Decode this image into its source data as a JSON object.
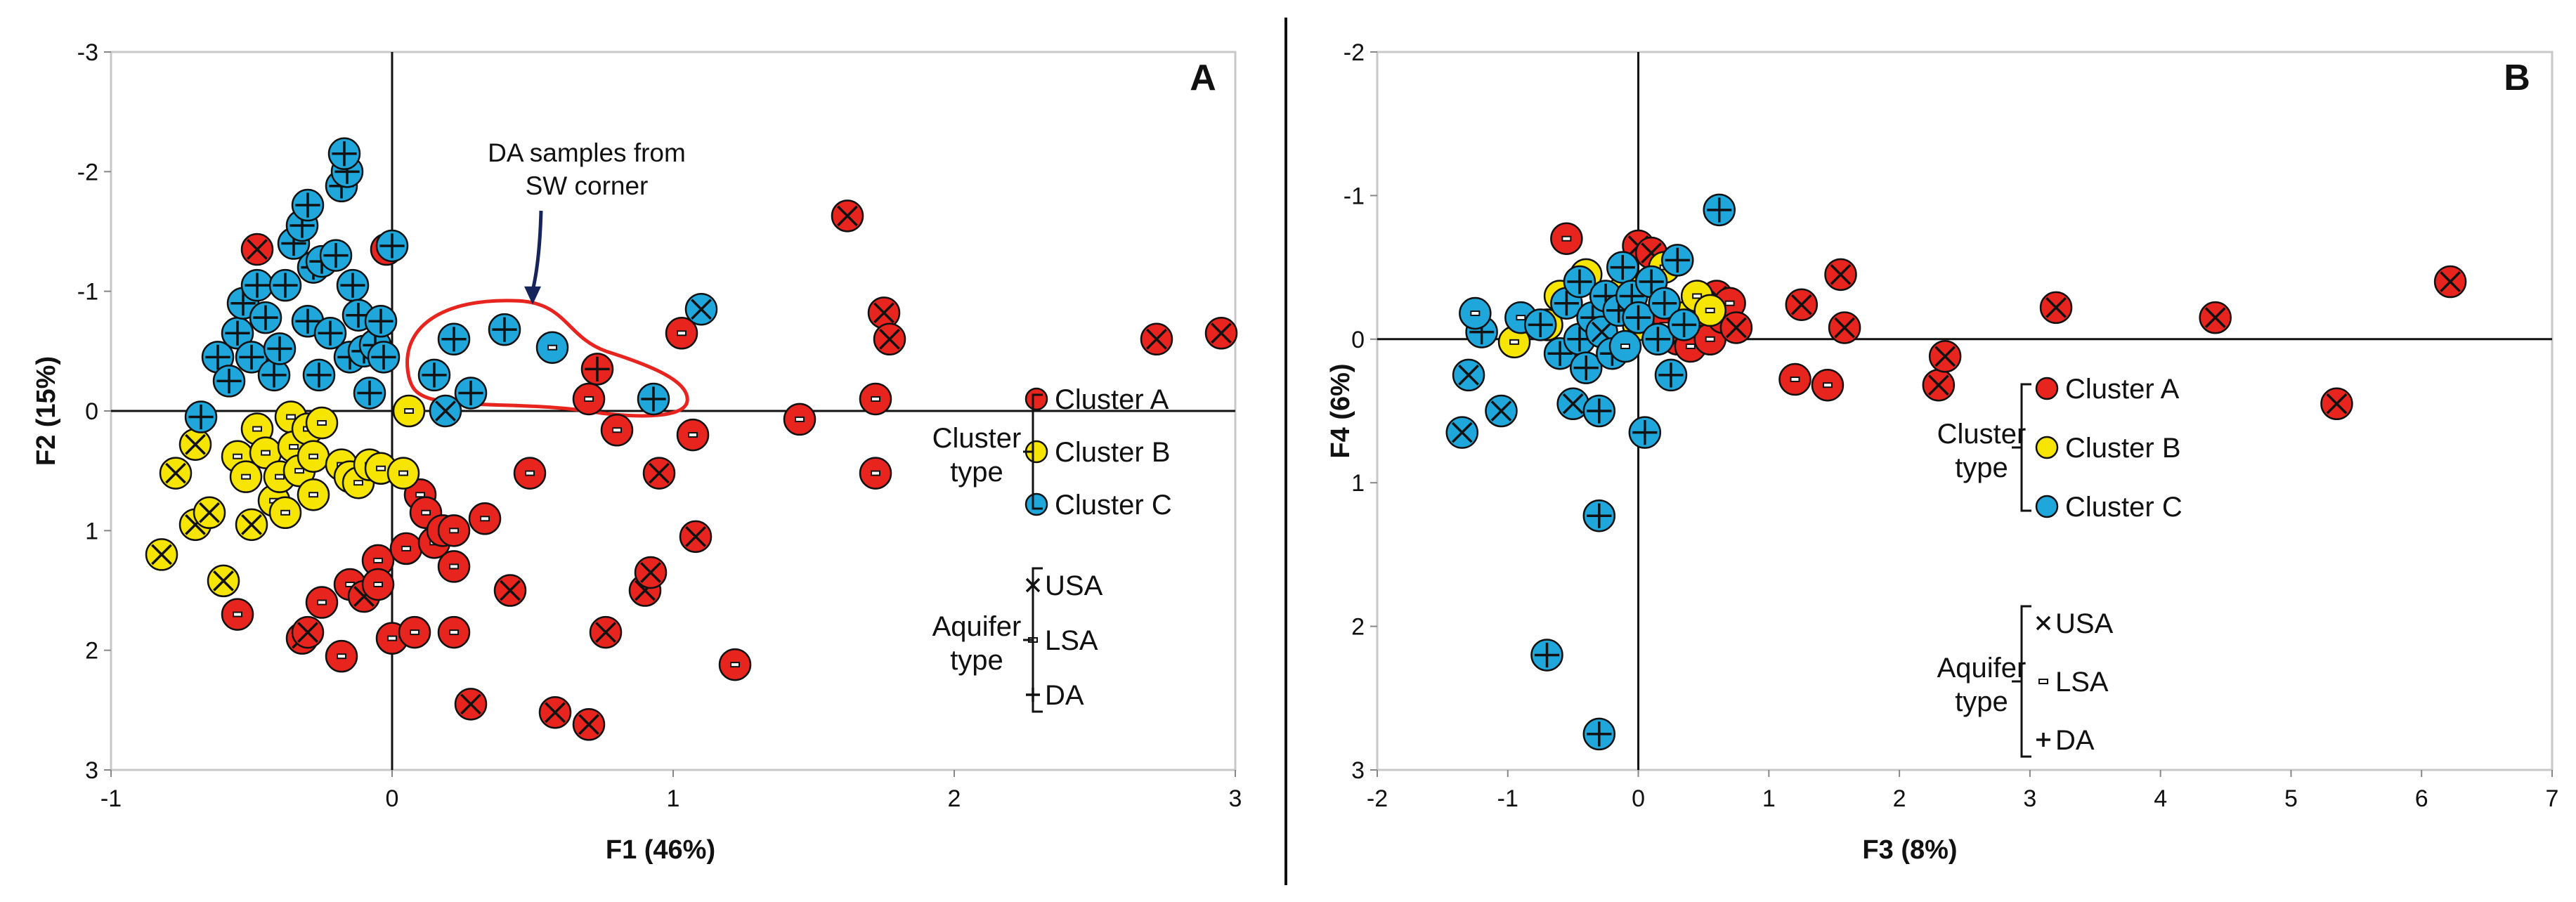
{
  "colors": {
    "cluster_a": "#e8241f",
    "cluster_b": "#f5e500",
    "cluster_c": "#1fa6db",
    "annotation_outline": "#e8241f",
    "arrow": "#16245c",
    "axis": "#111111"
  },
  "chart_data": [
    {
      "type": "scatter",
      "panel_label": "A",
      "title": "",
      "xlabel": "F1 (46%)",
      "ylabel": "F2 (15%)",
      "xlim": [
        -1,
        3
      ],
      "ylim": [
        3,
        -3
      ],
      "y_inverted": true,
      "xticks": [
        -1,
        0,
        1,
        2,
        3
      ],
      "xtick_labels": [
        "-1",
        "0",
        "1",
        "2",
        "3"
      ],
      "yticks": [
        -3,
        -2,
        -1,
        0,
        1,
        2,
        3
      ],
      "ytick_labels": [
        "-3",
        "-2",
        "-1",
        "0",
        "1",
        "2",
        "3"
      ],
      "grid": false,
      "annotation": {
        "text_lines": [
          "DA samples from",
          "SW corner"
        ],
        "x": 0.7,
        "y": -1.9,
        "arrow_to": [
          0.5,
          -0.9
        ]
      },
      "legend": {
        "placement": "right",
        "cluster_title": [
          "Cluster",
          "type"
        ],
        "cluster_entries": [
          "Cluster A",
          "Cluster B",
          "Cluster C"
        ],
        "aquifer_title": [
          "Aquifer",
          "type"
        ],
        "aquifer_entries": [
          {
            "symbol": "×",
            "label": "USA"
          },
          {
            "symbol": "-",
            "label": "LSA"
          },
          {
            "symbol": "+",
            "label": "DA"
          }
        ]
      },
      "series": [
        {
          "name": "Cluster A",
          "color_key": "cluster_a",
          "points": [
            [
              -0.48,
              -1.35,
              "x"
            ],
            [
              -0.02,
              -1.35,
              "-"
            ],
            [
              -0.55,
              1.7,
              "-"
            ],
            [
              -0.32,
              1.9,
              "x"
            ],
            [
              -0.3,
              1.85,
              "x"
            ],
            [
              -0.25,
              1.6,
              "-"
            ],
            [
              -0.18,
              2.05,
              "-"
            ],
            [
              -0.15,
              1.45,
              "-"
            ],
            [
              -0.1,
              1.55,
              "x"
            ],
            [
              -0.05,
              1.25,
              "-"
            ],
            [
              -0.05,
              1.45,
              "-"
            ],
            [
              0,
              1.9,
              "-"
            ],
            [
              0.05,
              1.15,
              "-"
            ],
            [
              0.08,
              1.85,
              "-"
            ],
            [
              0.1,
              0.7,
              "-"
            ],
            [
              0.12,
              0.85,
              "-"
            ],
            [
              0.15,
              1.1,
              "-"
            ],
            [
              0.18,
              1.0,
              "-"
            ],
            [
              0.22,
              1.0,
              "-"
            ],
            [
              0.22,
              1.3,
              "-"
            ],
            [
              0.22,
              1.85,
              "-"
            ],
            [
              0.28,
              2.45,
              "x"
            ],
            [
              0.33,
              0.9,
              "-"
            ],
            [
              0.42,
              1.5,
              "x"
            ],
            [
              0.49,
              0.52,
              "-"
            ],
            [
              0.58,
              2.52,
              "x"
            ],
            [
              0.7,
              2.62,
              "x"
            ],
            [
              0.7,
              -0.1,
              "-"
            ],
            [
              0.73,
              -0.35,
              "+"
            ],
            [
              0.76,
              1.85,
              "x"
            ],
            [
              0.8,
              0.16,
              "-"
            ],
            [
              0.9,
              1.5,
              "x"
            ],
            [
              0.92,
              1.35,
              "x"
            ],
            [
              0.95,
              0.52,
              "x"
            ],
            [
              1.03,
              -0.65,
              "-"
            ],
            [
              1.07,
              0.2,
              "-"
            ],
            [
              1.08,
              1.05,
              "x"
            ],
            [
              1.22,
              2.12,
              "-"
            ],
            [
              1.45,
              0.07,
              "-"
            ],
            [
              1.62,
              -1.63,
              "x"
            ],
            [
              1.72,
              -0.1,
              "-"
            ],
            [
              1.72,
              0.52,
              "-"
            ],
            [
              1.75,
              -0.82,
              "x"
            ],
            [
              1.77,
              -0.6,
              "x"
            ],
            [
              2.72,
              -0.6,
              "x"
            ],
            [
              2.95,
              -0.65,
              "x"
            ]
          ]
        },
        {
          "name": "Cluster B",
          "color_key": "cluster_b",
          "points": [
            [
              -0.82,
              1.2,
              "x"
            ],
            [
              -0.77,
              0.52,
              "x"
            ],
            [
              -0.7,
              0.28,
              "x"
            ],
            [
              -0.7,
              0.95,
              "x"
            ],
            [
              -0.65,
              0.85,
              "x"
            ],
            [
              -0.6,
              1.42,
              "x"
            ],
            [
              -0.55,
              0.38,
              "-"
            ],
            [
              -0.52,
              0.55,
              "-"
            ],
            [
              -0.5,
              0.95,
              "x"
            ],
            [
              -0.48,
              0.15,
              "-"
            ],
            [
              -0.45,
              0.35,
              "-"
            ],
            [
              -0.42,
              0.75,
              "-"
            ],
            [
              -0.4,
              0.55,
              "-"
            ],
            [
              -0.38,
              0.85,
              "-"
            ],
            [
              -0.36,
              0.05,
              "-"
            ],
            [
              -0.35,
              0.3,
              "-"
            ],
            [
              -0.33,
              0.5,
              "-"
            ],
            [
              -0.3,
              0.15,
              "-"
            ],
            [
              -0.28,
              0.7,
              "-"
            ],
            [
              -0.28,
              0.38,
              "-"
            ],
            [
              -0.25,
              0.1,
              "-"
            ],
            [
              -0.18,
              0.45,
              "-"
            ],
            [
              -0.15,
              0.55,
              "-"
            ],
            [
              -0.12,
              0.6,
              "-"
            ],
            [
              -0.08,
              0.45,
              "-"
            ],
            [
              -0.04,
              0.48,
              "-"
            ],
            [
              0.04,
              0.52,
              "-"
            ],
            [
              0.06,
              0.0,
              "-"
            ]
          ]
        },
        {
          "name": "Cluster C",
          "color_key": "cluster_c",
          "points": [
            [
              -0.68,
              0.05,
              "+"
            ],
            [
              -0.62,
              -0.45,
              "+"
            ],
            [
              -0.58,
              -0.25,
              "+"
            ],
            [
              -0.55,
              -0.65,
              "+"
            ],
            [
              -0.53,
              -0.9,
              "+"
            ],
            [
              -0.5,
              -0.45,
              "+"
            ],
            [
              -0.48,
              -1.05,
              "+"
            ],
            [
              -0.45,
              -0.78,
              "+"
            ],
            [
              -0.42,
              -0.3,
              "+"
            ],
            [
              -0.4,
              -0.52,
              "+"
            ],
            [
              -0.38,
              -1.05,
              "+"
            ],
            [
              -0.35,
              -1.4,
              "+"
            ],
            [
              -0.32,
              -1.55,
              "+"
            ],
            [
              -0.3,
              -1.72,
              "+"
            ],
            [
              -0.3,
              -0.75,
              "+"
            ],
            [
              -0.28,
              -1.2,
              "+"
            ],
            [
              -0.26,
              -0.3,
              "+"
            ],
            [
              -0.25,
              -1.25,
              "+"
            ],
            [
              -0.22,
              -0.65,
              "+"
            ],
            [
              -0.2,
              -1.3,
              "+"
            ],
            [
              -0.18,
              -1.88,
              "+"
            ],
            [
              -0.16,
              -2.0,
              "+"
            ],
            [
              -0.15,
              -0.45,
              "+"
            ],
            [
              -0.14,
              -1.05,
              "+"
            ],
            [
              -0.12,
              -0.8,
              "+"
            ],
            [
              -0.1,
              -0.5,
              "+"
            ],
            [
              -0.08,
              -0.15,
              "+"
            ],
            [
              -0.06,
              -0.55,
              "+"
            ],
            [
              -0.04,
              -0.75,
              "+"
            ],
            [
              -0.03,
              -0.45,
              "+"
            ],
            [
              0,
              -1.38,
              "+"
            ],
            [
              -0.17,
              -2.15,
              "+"
            ],
            [
              0.15,
              -0.3,
              "+"
            ],
            [
              0.19,
              0.0,
              "x"
            ],
            [
              0.22,
              -0.6,
              "+"
            ],
            [
              0.28,
              -0.15,
              "+"
            ],
            [
              0.4,
              -0.68,
              "+"
            ],
            [
              0.57,
              -0.53,
              "-"
            ],
            [
              0.93,
              -0.1,
              "+"
            ],
            [
              1.1,
              -0.85,
              "x"
            ]
          ]
        }
      ]
    },
    {
      "type": "scatter",
      "panel_label": "B",
      "title": "",
      "xlabel": "F3 (8%)",
      "ylabel": "F4 (6%)",
      "xlim": [
        -2,
        7
      ],
      "ylim": [
        3,
        -2
      ],
      "y_inverted": true,
      "xticks": [
        -2,
        -1,
        0,
        1,
        2,
        3,
        4,
        5,
        6,
        7
      ],
      "xtick_labels": [
        "-2",
        "-1",
        "0",
        "1",
        "2",
        "3",
        "4",
        "5",
        "6",
        "7"
      ],
      "yticks": [
        -2,
        -1,
        0,
        1,
        2,
        3
      ],
      "ytick_labels": [
        "-2",
        "-1",
        "0",
        "1",
        "2",
        "3"
      ],
      "grid": false,
      "legend": {
        "placement": "center-right",
        "cluster_title": [
          "Cluster",
          "type"
        ],
        "cluster_entries": [
          "Cluster A",
          "Cluster B",
          "Cluster C"
        ],
        "aquifer_title": [
          "Aquifer",
          "type"
        ],
        "aquifer_entries": [
          {
            "symbol": "×",
            "label": "USA"
          },
          {
            "symbol": "-",
            "label": "LSA"
          },
          {
            "symbol": "+",
            "label": "DA"
          }
        ]
      },
      "series": [
        {
          "name": "Cluster A",
          "color_key": "cluster_a",
          "points": [
            [
              -0.55,
              -0.7,
              "-"
            ],
            [
              0.0,
              -0.65,
              "x"
            ],
            [
              0.1,
              -0.6,
              "x"
            ],
            [
              0.2,
              -0.1,
              "-"
            ],
            [
              0.3,
              0.0,
              "x"
            ],
            [
              0.35,
              -0.15,
              "x"
            ],
            [
              0.4,
              0.05,
              "-"
            ],
            [
              0.5,
              -0.2,
              "x"
            ],
            [
              0.55,
              0.0,
              "-"
            ],
            [
              0.6,
              -0.3,
              "x"
            ],
            [
              0.65,
              -0.15,
              "-"
            ],
            [
              0.7,
              -0.25,
              "-"
            ],
            [
              0.75,
              -0.08,
              "x"
            ],
            [
              1.2,
              0.28,
              "-"
            ],
            [
              1.25,
              -0.24,
              "x"
            ],
            [
              1.45,
              0.32,
              "-"
            ],
            [
              1.55,
              -0.45,
              "x"
            ],
            [
              1.58,
              -0.08,
              "x"
            ],
            [
              2.3,
              0.32,
              "x"
            ],
            [
              2.35,
              0.12,
              "x"
            ],
            [
              3.2,
              -0.22,
              "x"
            ],
            [
              4.42,
              -0.15,
              "x"
            ],
            [
              5.35,
              0.45,
              "x"
            ],
            [
              6.22,
              -0.4,
              "x"
            ]
          ]
        },
        {
          "name": "Cluster B",
          "color_key": "cluster_b",
          "points": [
            [
              -0.95,
              0.02,
              "-"
            ],
            [
              -0.7,
              -0.1,
              "-"
            ],
            [
              -0.6,
              -0.3,
              "-"
            ],
            [
              -0.4,
              -0.45,
              "-"
            ],
            [
              -0.25,
              -0.2,
              "-"
            ],
            [
              -0.1,
              -0.35,
              "-"
            ],
            [
              0.0,
              -0.1,
              "-"
            ],
            [
              0.1,
              -0.4,
              "-"
            ],
            [
              0.2,
              -0.5,
              "-"
            ],
            [
              0.35,
              -0.15,
              "-"
            ],
            [
              0.45,
              -0.3,
              "-"
            ],
            [
              0.55,
              -0.2,
              "-"
            ]
          ]
        },
        {
          "name": "Cluster C",
          "color_key": "cluster_c",
          "points": [
            [
              -1.35,
              0.65,
              "x"
            ],
            [
              -1.3,
              0.25,
              "x"
            ],
            [
              -1.2,
              -0.05,
              "+"
            ],
            [
              -1.25,
              -0.18,
              "-"
            ],
            [
              -1.05,
              0.5,
              "x"
            ],
            [
              -0.9,
              -0.15,
              "-"
            ],
            [
              -0.75,
              -0.1,
              "+"
            ],
            [
              -0.7,
              2.2,
              "+"
            ],
            [
              -0.6,
              0.1,
              "+"
            ],
            [
              -0.55,
              -0.25,
              "+"
            ],
            [
              -0.5,
              0.45,
              "x"
            ],
            [
              -0.45,
              0.0,
              "+"
            ],
            [
              -0.45,
              -0.4,
              "+"
            ],
            [
              -0.4,
              0.2,
              "+"
            ],
            [
              -0.35,
              -0.15,
              "+"
            ],
            [
              -0.3,
              0.5,
              "+"
            ],
            [
              -0.3,
              1.23,
              "+"
            ],
            [
              -0.3,
              2.75,
              "+"
            ],
            [
              -0.28,
              -0.05,
              "x"
            ],
            [
              -0.25,
              -0.3,
              "+"
            ],
            [
              -0.2,
              0.1,
              "+"
            ],
            [
              -0.15,
              -0.2,
              "+"
            ],
            [
              -0.12,
              -0.5,
              "+"
            ],
            [
              -0.1,
              0.05,
              "-"
            ],
            [
              -0.05,
              -0.3,
              "+"
            ],
            [
              0.0,
              -0.15,
              "+"
            ],
            [
              0.05,
              0.65,
              "+"
            ],
            [
              0.1,
              -0.4,
              "+"
            ],
            [
              0.15,
              0.0,
              "+"
            ],
            [
              0.2,
              -0.25,
              "+"
            ],
            [
              0.25,
              0.25,
              "+"
            ],
            [
              0.3,
              -0.55,
              "+"
            ],
            [
              0.35,
              -0.1,
              "+"
            ],
            [
              0.62,
              -0.9,
              "+"
            ]
          ]
        }
      ]
    }
  ]
}
